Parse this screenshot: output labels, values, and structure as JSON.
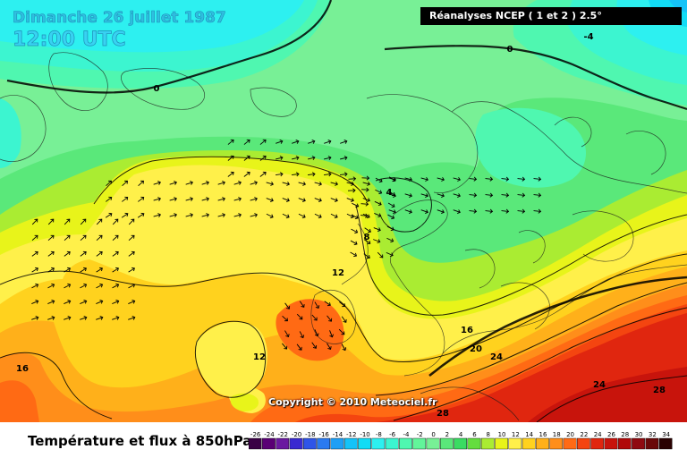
{
  "header": {
    "date": "Dimanche 26 juillet 1987",
    "time": "12:00 UTC",
    "source": "Réanalyses NCEP ( 1 et 2 ) 2.5°"
  },
  "footer": {
    "legend_title": "Température et flux à 850hPa",
    "copyright": "Copyright © 2010 Meteociel.fr"
  },
  "scale": {
    "values": [
      "-26",
      "-24",
      "-22",
      "-20",
      "-18",
      "-16",
      "-14",
      "-12",
      "-10",
      "-8",
      "-6",
      "-4",
      "-2",
      "0",
      "2",
      "4",
      "6",
      "8",
      "10",
      "12",
      "14",
      "16",
      "18",
      "20",
      "22",
      "24",
      "26",
      "28",
      "30",
      "32",
      "34"
    ],
    "colors": [
      "#3a0045",
      "#5a0075",
      "#6a1aa0",
      "#3a2ad0",
      "#2f55e8",
      "#2a7af0",
      "#1f9ff5",
      "#15c3f8",
      "#12dcf5",
      "#2df0f0",
      "#3cf5d0",
      "#4ff7b0",
      "#62f59a",
      "#78f096",
      "#5ae87a",
      "#3adc62",
      "#64dd3e",
      "#aaec32",
      "#e8f41a",
      "#fff04a",
      "#ffd21e",
      "#ffb01a",
      "#ff8e1a",
      "#ff6a14",
      "#f44510",
      "#e0260f",
      "#c8140c",
      "#b00a0a",
      "#8f0a10",
      "#6a0808",
      "#2a0202"
    ]
  },
  "map": {
    "isotherm_labels": [
      "0",
      "0",
      "-4",
      "4",
      "8",
      "12",
      "12",
      "16",
      "16",
      "20",
      "24",
      "24",
      "28",
      "28"
    ],
    "palette": {
      "pos_0_4": "#78f096",
      "pos_4_8": "#5ae87a",
      "pos_8_10": "#aaec32",
      "pos_10_12": "#e8f41a",
      "pos_12_14": "#fff04a",
      "pos_14_16": "#ffd21e",
      "pos_16_18": "#ffb01a",
      "pos_18_20": "#ff8e1a",
      "pos_20_22": "#ff6a14",
      "pos_22_24": "#f44510",
      "pos_24_26": "#e0260f",
      "pos_26_28": "#c8140c",
      "neg_0_2": "#4ff7b0",
      "neg_2_4": "#3cf5d0",
      "neg_4_6": "#2df0f0",
      "neg_6_8": "#12dcf5",
      "neg_8_10": "#15c3f8",
      "neg_10_12": "#1f9ff5"
    }
  }
}
